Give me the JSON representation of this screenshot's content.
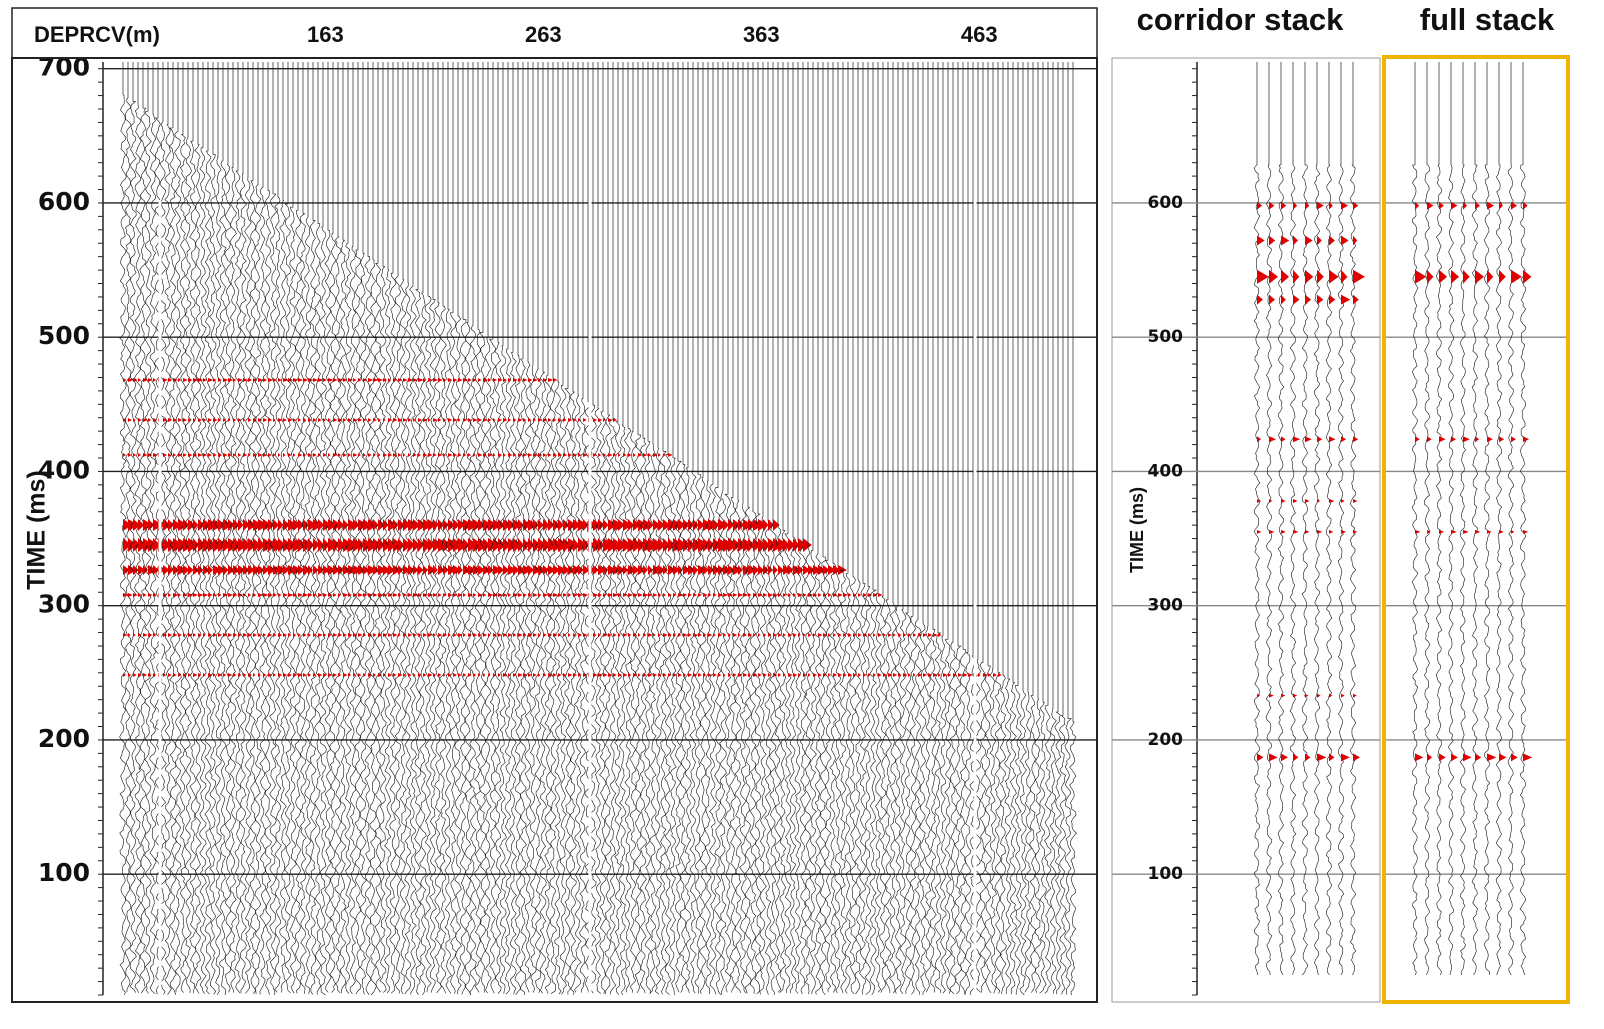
{
  "chart_data": [
    {
      "type": "wiggle",
      "xlabel": "DEPRCV(m)",
      "xlim": [
        61,
        517
      ],
      "xticks": [
        163,
        263,
        363,
        463
      ],
      "ylabel": "TIME (ms)",
      "ylim": [
        10,
        705
      ],
      "yticks": [
        100,
        200,
        300,
        400,
        500,
        600,
        700
      ],
      "grid": true
    },
    {
      "type": "wiggle",
      "title": "corridor stack",
      "ylabel": "TIME (ms)",
      "ylim": [
        10,
        705
      ],
      "yticks": [
        100,
        200,
        300,
        400,
        500,
        600
      ],
      "grid": true
    },
    {
      "type": "wiggle",
      "title": "full stack",
      "frame_color": "#f0b400",
      "ylim": [
        10,
        705
      ],
      "yticks": [
        100,
        200,
        300,
        400,
        500,
        600
      ],
      "grid": true
    }
  ]
}
